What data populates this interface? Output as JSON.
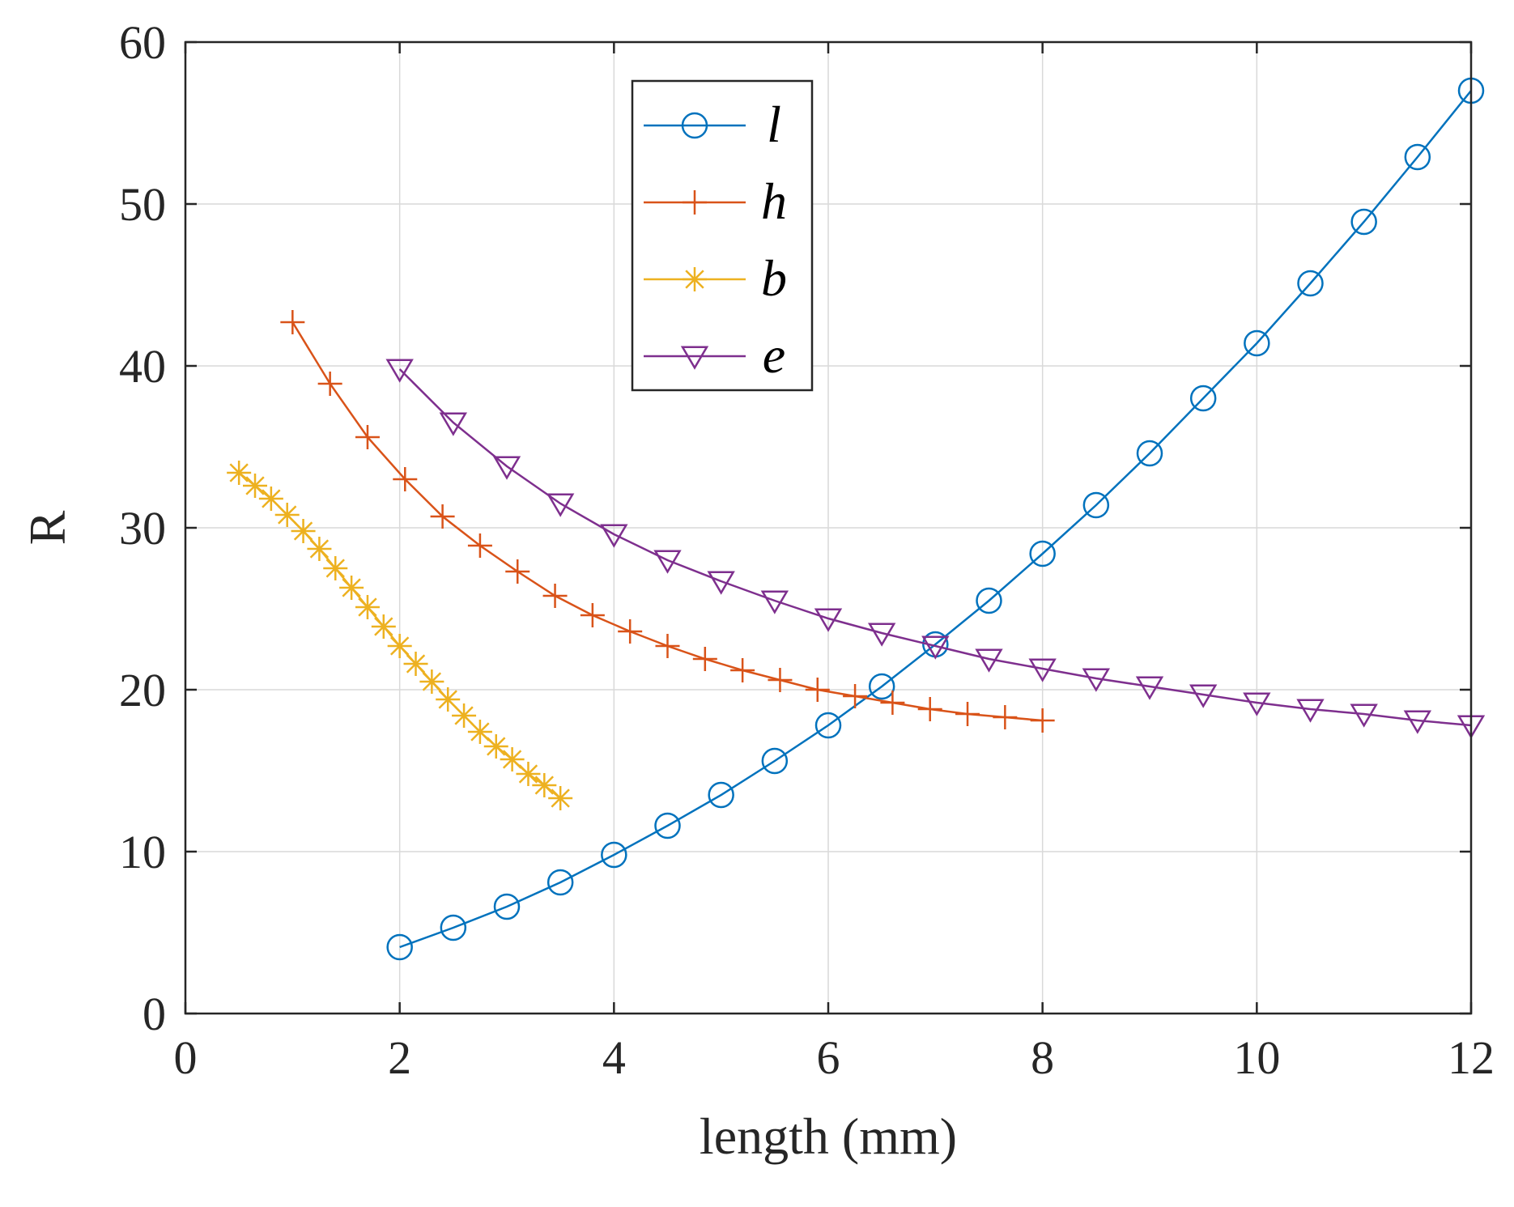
{
  "chart_data": {
    "type": "line",
    "title": "",
    "xlabel": "length (mm)",
    "ylabel": "R",
    "xlim": [
      0,
      12
    ],
    "ylim": [
      0,
      60
    ],
    "xticks": [
      0,
      2,
      4,
      6,
      8,
      10,
      12
    ],
    "yticks": [
      0,
      10,
      20,
      30,
      40,
      50,
      60
    ],
    "grid": true,
    "legend_position": "top-center",
    "series": [
      {
        "name": "l",
        "color": "#0072BD",
        "marker": "circle",
        "x": [
          2,
          2.5,
          3,
          3.5,
          4,
          4.5,
          5,
          5.5,
          6,
          6.5,
          7,
          7.5,
          8,
          8.5,
          9,
          9.5,
          10,
          10.5,
          11,
          11.5,
          12
        ],
        "y": [
          4.1,
          5.3,
          6.6,
          8.1,
          9.8,
          11.6,
          13.5,
          15.6,
          17.8,
          20.2,
          22.8,
          25.5,
          28.4,
          31.4,
          34.6,
          38.0,
          41.4,
          45.1,
          48.9,
          52.9,
          57.0
        ]
      },
      {
        "name": "h",
        "color": "#D95319",
        "marker": "plus",
        "x": [
          1.0,
          1.35,
          1.7,
          2.05,
          2.4,
          2.75,
          3.1,
          3.45,
          3.8,
          4.15,
          4.5,
          4.85,
          5.2,
          5.55,
          5.9,
          6.25,
          6.6,
          6.95,
          7.3,
          7.65,
          8.0
        ],
        "y": [
          42.7,
          38.9,
          35.6,
          33.0,
          30.7,
          28.9,
          27.3,
          25.8,
          24.6,
          23.6,
          22.7,
          21.9,
          21.2,
          20.6,
          20.0,
          19.6,
          19.2,
          18.8,
          18.5,
          18.3,
          18.1
        ]
      },
      {
        "name": "b",
        "color": "#EDB120",
        "marker": "asterisk",
        "x": [
          0.5,
          0.65,
          0.8,
          0.95,
          1.1,
          1.25,
          1.4,
          1.55,
          1.7,
          1.85,
          2.0,
          2.15,
          2.3,
          2.45,
          2.6,
          2.75,
          2.9,
          3.05,
          3.2,
          3.35,
          3.5
        ],
        "y": [
          33.4,
          32.6,
          31.8,
          30.8,
          29.8,
          28.7,
          27.5,
          26.3,
          25.1,
          23.9,
          22.7,
          21.6,
          20.5,
          19.4,
          18.4,
          17.4,
          16.5,
          15.7,
          14.8,
          14.1,
          13.3
        ]
      },
      {
        "name": "e",
        "color": "#7E2F8E",
        "marker": "triangle-down",
        "x": [
          2,
          2.5,
          3,
          3.5,
          4,
          4.5,
          5,
          5.5,
          6,
          6.5,
          7,
          7.5,
          8,
          8.5,
          9,
          9.5,
          10,
          10.5,
          11,
          11.5,
          12
        ],
        "y": [
          39.8,
          36.5,
          33.8,
          31.5,
          29.6,
          28.0,
          26.7,
          25.5,
          24.4,
          23.5,
          22.7,
          21.9,
          21.3,
          20.7,
          20.2,
          19.7,
          19.2,
          18.8,
          18.5,
          18.1,
          17.8
        ]
      }
    ]
  }
}
